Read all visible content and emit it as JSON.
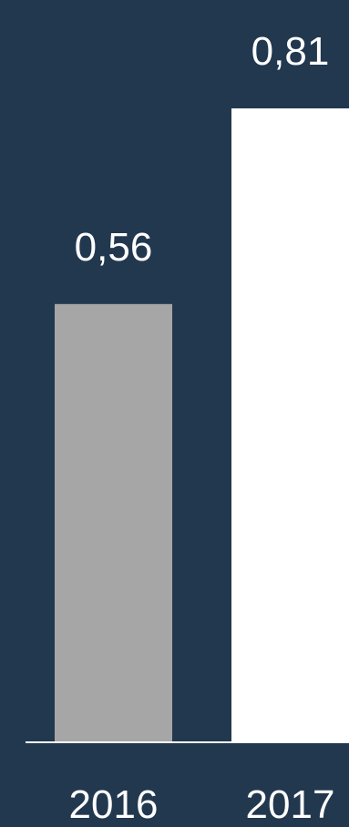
{
  "colors": {
    "background": "#22384f",
    "axis_line": "#ffffff",
    "label_text": "#ffffff"
  },
  "chart_data": {
    "type": "bar",
    "categories": [
      "2016",
      "2017"
    ],
    "values": [
      0.56,
      0.81
    ],
    "data_labels": [
      "0,56",
      "0,81"
    ],
    "bar_colors": [
      "#a6a6a6",
      "#ffffff"
    ],
    "title": "",
    "xlabel": "",
    "ylabel": "",
    "ylim": [
      0,
      0.81
    ],
    "grid": false,
    "legend": "none"
  }
}
